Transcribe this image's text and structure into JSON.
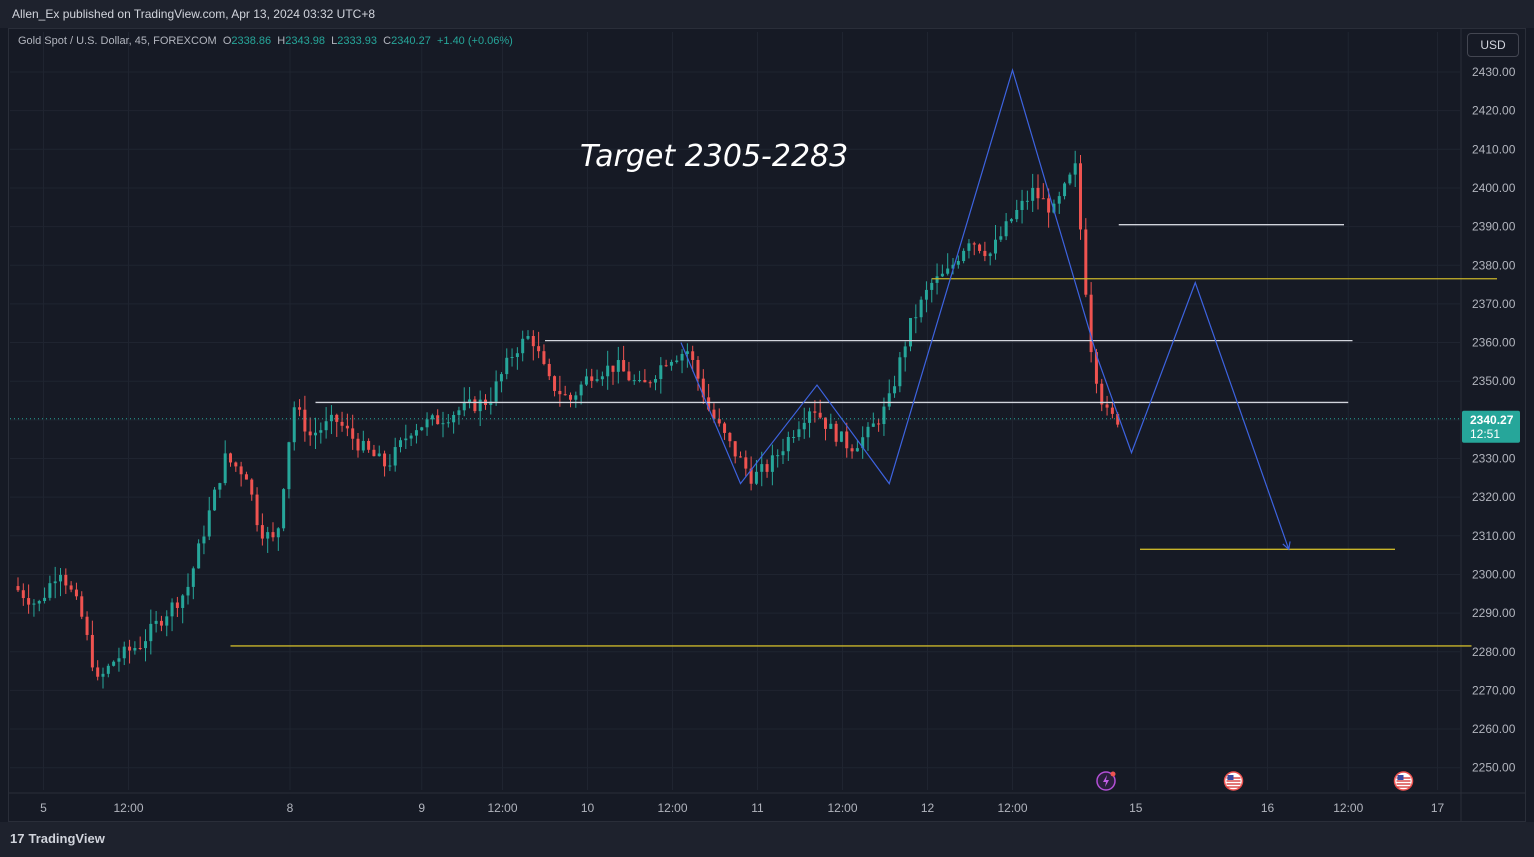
{
  "header": {
    "publisher_line": "Allen_Ex published on TradingView.com, Apr 13, 2024 03:32 UTC+8"
  },
  "legend": {
    "symbol": "Gold Spot / U.S. Dollar, 45, FOREXCOM",
    "o_label": "O",
    "o_value": "2338.86",
    "h_label": "H",
    "h_value": "2343.98",
    "l_label": "L",
    "l_value": "2333.93",
    "c_label": "C",
    "c_value": "2340.27",
    "change": "+1.40 (+0.06%)"
  },
  "currency_button": "USD",
  "footer": {
    "brand": "TradingView"
  },
  "colors": {
    "up": "#26a69a",
    "down": "#ef5350",
    "pattern": "#3d63e0",
    "level_yellow": "#c8b42a",
    "level_white": "#d1d4dc",
    "price_tag": "#26a69a"
  },
  "chart_data": {
    "type": "candlestick",
    "title": "",
    "annotation": "Target 2305-2283",
    "y_range": [
      2246,
      2434
    ],
    "y_ticks": [
      "2430.00",
      "2420.00",
      "2410.00",
      "2400.00",
      "2390.00",
      "2380.00",
      "2370.00",
      "2360.00",
      "2350.00",
      "2340.00",
      "2330.00",
      "2320.00",
      "2310.00",
      "2300.00",
      "2290.00",
      "2280.00",
      "2270.00",
      "2260.00",
      "2250.00"
    ],
    "x_ticks": [
      {
        "label": "5",
        "t": 0.3
      },
      {
        "label": "12:00",
        "t": 1.3
      },
      {
        "label": "8",
        "t": 3.2
      },
      {
        "label": "9",
        "t": 4.75
      },
      {
        "label": "12:00",
        "t": 5.7
      },
      {
        "label": "10",
        "t": 6.7
      },
      {
        "label": "12:00",
        "t": 7.7
      },
      {
        "label": "11",
        "t": 8.7
      },
      {
        "label": "12:00",
        "t": 9.7
      },
      {
        "label": "12",
        "t": 10.7
      },
      {
        "label": "12:00",
        "t": 11.7
      },
      {
        "label": "15",
        "t": 13.15
      },
      {
        "label": "16",
        "t": 14.7
      },
      {
        "label": "12:00",
        "t": 15.65
      },
      {
        "label": "17",
        "t": 16.7
      }
    ],
    "current_price": {
      "value": "2340.27",
      "countdown": "12:51"
    },
    "price_path": [
      [
        0,
        2297
      ],
      [
        0.3,
        2292
      ],
      [
        0.55,
        2302
      ],
      [
        0.8,
        2290
      ],
      [
        1.0,
        2272
      ],
      [
        1.2,
        2278
      ],
      [
        1.5,
        2282
      ],
      [
        1.8,
        2290
      ],
      [
        2.05,
        2296
      ],
      [
        2.3,
        2315
      ],
      [
        2.5,
        2330
      ],
      [
        2.75,
        2326
      ],
      [
        2.9,
        2312
      ],
      [
        3.1,
        2308
      ],
      [
        3.3,
        2344
      ],
      [
        3.5,
        2336
      ],
      [
        3.8,
        2340
      ],
      [
        4.1,
        2333
      ],
      [
        4.4,
        2328
      ],
      [
        4.7,
        2338
      ],
      [
        5.0,
        2340
      ],
      [
        5.3,
        2343
      ],
      [
        5.6,
        2345
      ],
      [
        5.9,
        2358
      ],
      [
        6.1,
        2362
      ],
      [
        6.3,
        2350
      ],
      [
        6.55,
        2345
      ],
      [
        6.8,
        2352
      ],
      [
        7.1,
        2354
      ],
      [
        7.4,
        2348
      ],
      [
        7.7,
        2356
      ],
      [
        7.95,
        2358
      ],
      [
        8.2,
        2342
      ],
      [
        8.45,
        2333
      ],
      [
        8.7,
        2325
      ],
      [
        8.9,
        2328
      ],
      [
        9.15,
        2336
      ],
      [
        9.4,
        2344
      ],
      [
        9.6,
        2338
      ],
      [
        9.85,
        2333
      ],
      [
        10.05,
        2336
      ],
      [
        10.3,
        2344
      ],
      [
        10.55,
        2364
      ],
      [
        10.8,
        2375
      ],
      [
        11.0,
        2378
      ],
      [
        11.25,
        2387
      ],
      [
        11.5,
        2383
      ],
      [
        11.75,
        2392
      ],
      [
        12.0,
        2399
      ],
      [
        12.25,
        2394
      ],
      [
        12.5,
        2405
      ],
      [
        12.6,
        2380
      ],
      [
        12.7,
        2356
      ],
      [
        12.85,
        2342
      ],
      [
        12.95,
        2340.27
      ]
    ],
    "bounds": {
      "t_start": 0,
      "t_end": 17.5,
      "segments": [
        {
          "from_t": 0,
          "to_t": 3.2
        },
        {
          "from_t": 3.2,
          "to_t": 17.5
        }
      ]
    },
    "levels": [
      {
        "kind": "yellow",
        "value": 2376.5,
        "from_t": 10.75,
        "to_t": 17.4
      },
      {
        "kind": "yellow",
        "value": 2281.5,
        "from_t": 2.5,
        "to_t": 17.1
      },
      {
        "kind": "yellow",
        "value": 2306.5,
        "from_t": 13.2,
        "to_t": 16.2
      },
      {
        "kind": "white",
        "value": 2390.5,
        "from_t": 12.95,
        "to_t": 15.6
      },
      {
        "kind": "white",
        "value": 2360.5,
        "from_t": 6.2,
        "to_t": 15.7
      },
      {
        "kind": "white",
        "value": 2344.5,
        "from_t": 3.5,
        "to_t": 15.65
      }
    ],
    "pattern_path": [
      [
        7.8,
        2360
      ],
      [
        8.5,
        2323.5
      ],
      [
        9.4,
        2349
      ],
      [
        10.25,
        2323.5
      ],
      [
        11.7,
        2430.5
      ],
      [
        12.7,
        2356
      ],
      [
        13.1,
        2331.5
      ],
      [
        13.85,
        2375.5
      ],
      [
        14.95,
        2306.5
      ]
    ],
    "icons": [
      {
        "name": "lightning-event-icon",
        "t": 12.8
      },
      {
        "name": "us-flag-event-icon",
        "t": 14.3
      },
      {
        "name": "us-flag-event-icon",
        "t": 16.3
      }
    ]
  }
}
